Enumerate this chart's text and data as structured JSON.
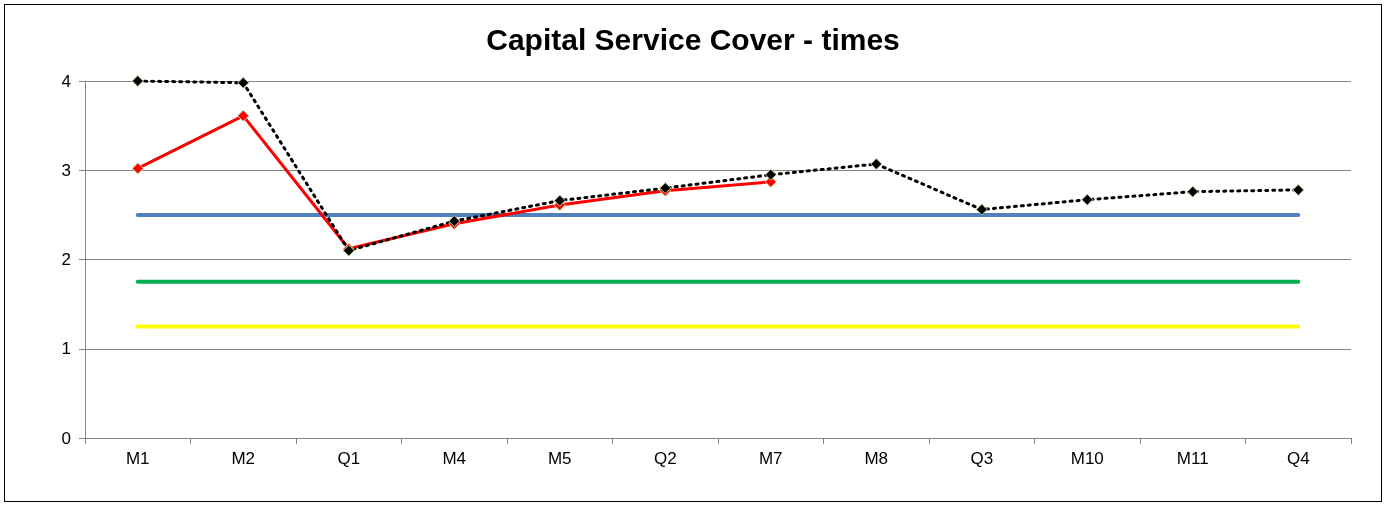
{
  "chart_data": {
    "type": "line",
    "title": "Capital Service Cover - times",
    "categories": [
      "M1",
      "M2",
      "Q1",
      "M4",
      "M5",
      "Q2",
      "M7",
      "M8",
      "Q3",
      "M10",
      "M11",
      "Q4"
    ],
    "series": [
      {
        "color": "#4f81bd",
        "marker": "none",
        "line_style": "solid",
        "values": [
          2.5,
          2.5,
          2.5,
          2.5,
          2.5,
          2.5,
          2.5,
          2.5,
          2.5,
          2.5,
          2.5,
          2.5
        ]
      },
      {
        "color": "#00b050",
        "marker": "none",
        "line_style": "solid",
        "values": [
          1.75,
          1.75,
          1.75,
          1.75,
          1.75,
          1.75,
          1.75,
          1.75,
          1.75,
          1.75,
          1.75,
          1.75
        ]
      },
      {
        "color": "#ffff00",
        "marker": "none",
        "line_style": "solid",
        "values": [
          1.25,
          1.25,
          1.25,
          1.25,
          1.25,
          1.25,
          1.25,
          1.25,
          1.25,
          1.25,
          1.25,
          1.25
        ]
      },
      {
        "color": "#ff0000",
        "marker": "diamond",
        "line_style": "solid",
        "values": [
          3.02,
          3.61,
          2.12,
          2.4,
          2.61,
          2.77,
          2.87,
          null,
          null,
          null,
          null,
          null
        ]
      },
      {
        "color": "#000000",
        "marker": "diamond",
        "line_style": "dotted",
        "values": [
          4.0,
          3.98,
          2.1,
          2.43,
          2.66,
          2.8,
          2.95,
          3.07,
          2.56,
          2.67,
          2.76,
          2.78
        ]
      }
    ],
    "ylim": [
      0,
      4
    ],
    "yticks": [
      0,
      1,
      2,
      3,
      4
    ],
    "grid": "y"
  }
}
